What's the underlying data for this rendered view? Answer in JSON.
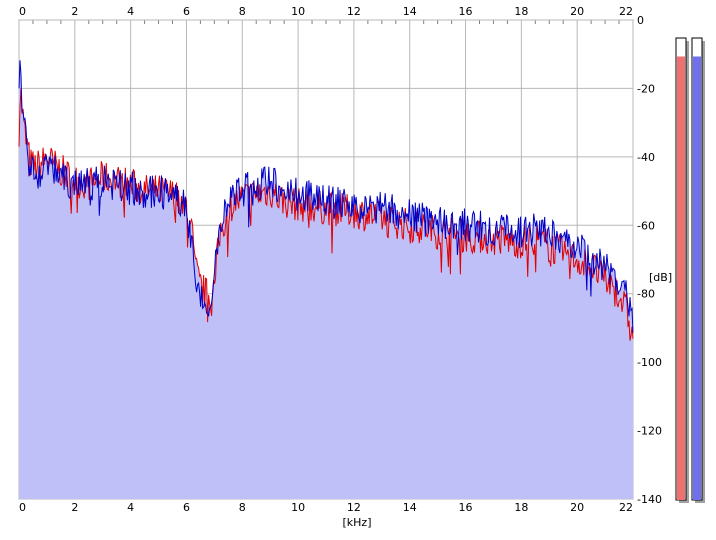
{
  "chart_data": {
    "type": "area",
    "xlabel": "[kHz]",
    "ylabel": "[dB]",
    "xlim": [
      0,
      22
    ],
    "ylim": [
      -140,
      0
    ],
    "x_ticks": [
      "0",
      "2",
      "4",
      "6",
      "8",
      "10",
      "12",
      "14",
      "16",
      "18",
      "20",
      "22"
    ],
    "y_ticks": [
      "0",
      "-20",
      "-40",
      "-60",
      "-80",
      "-100",
      "-120",
      "-140"
    ],
    "grid": true,
    "series": [
      {
        "color": "#e00000",
        "x": [
          0,
          0.05,
          0.1,
          0.2,
          0.3,
          0.4,
          0.6,
          0.8,
          1.0,
          1.2,
          1.5,
          2.0,
          2.5,
          3.0,
          3.5,
          4.0,
          4.5,
          5.0,
          5.5,
          5.8,
          6.0,
          6.2,
          6.3,
          6.5,
          6.7,
          6.9,
          7.0,
          7.2,
          7.4,
          7.6,
          8.0,
          8.5,
          9.0,
          9.5,
          10.0,
          11.0,
          12.0,
          13.0,
          14.0,
          15.0,
          16.0,
          17.0,
          18.0,
          18.5,
          19.0,
          20.0,
          20.5,
          21.0,
          21.5,
          21.8,
          22.0
        ],
        "values": [
          -32,
          -20,
          -25,
          -33,
          -37,
          -42,
          -43,
          -42,
          -40,
          -42,
          -44,
          -47,
          -48,
          -46,
          -47,
          -48,
          -50,
          -50,
          -51,
          -52,
          -55,
          -62,
          -72,
          -78,
          -80,
          -82,
          -78,
          -62,
          -58,
          -54,
          -52,
          -51,
          -50,
          -53,
          -54,
          -55,
          -56,
          -58,
          -60,
          -62,
          -63,
          -64,
          -65,
          -64,
          -66,
          -70,
          -72,
          -76,
          -80,
          -86,
          -94
        ]
      },
      {
        "color": "#0000c8",
        "x": [
          0,
          0.05,
          0.1,
          0.2,
          0.3,
          0.4,
          0.6,
          0.8,
          1.0,
          1.2,
          1.5,
          2.0,
          2.5,
          3.0,
          3.5,
          4.0,
          4.5,
          5.0,
          5.5,
          5.8,
          6.0,
          6.2,
          6.3,
          6.5,
          6.7,
          6.9,
          7.0,
          7.2,
          7.4,
          7.6,
          8.0,
          8.5,
          9.0,
          9.5,
          10.0,
          11.0,
          12.0,
          13.0,
          14.0,
          15.0,
          16.0,
          17.0,
          18.0,
          18.5,
          19.0,
          20.0,
          20.5,
          21.0,
          21.5,
          21.8,
          22.0
        ],
        "values": [
          -15,
          -12,
          -22,
          -30,
          -38,
          -44,
          -45,
          -44,
          -42,
          -43,
          -46,
          -48,
          -48,
          -47,
          -48,
          -49,
          -51,
          -50,
          -52,
          -53,
          -56,
          -64,
          -74,
          -80,
          -82,
          -84,
          -76,
          -60,
          -55,
          -51,
          -50,
          -48,
          -47,
          -50,
          -51,
          -52,
          -53,
          -55,
          -57,
          -59,
          -60,
          -61,
          -62,
          -61,
          -63,
          -66,
          -69,
          -72,
          -76,
          -82,
          -88
        ]
      }
    ],
    "level_meters": [
      {
        "color": "#ef7070",
        "level": 0.96
      },
      {
        "color": "#7070ef",
        "level": 0.96
      }
    ]
  }
}
